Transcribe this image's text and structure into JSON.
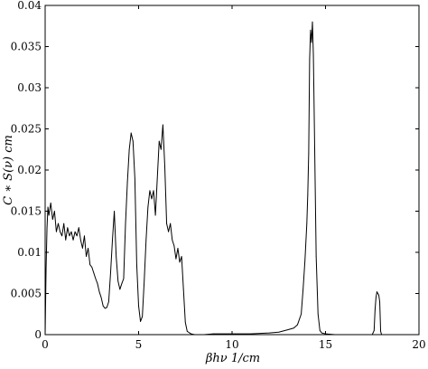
{
  "chart_data": {
    "type": "line",
    "title": "",
    "xlabel": "βhν 1/cm",
    "ylabel": "C ∗ S(ν) cm",
    "xlim": [
      0,
      20
    ],
    "ylim": [
      0,
      0.04
    ],
    "x_ticks": [
      0,
      5,
      10,
      15,
      20
    ],
    "x_tick_labels": [
      "0",
      "5",
      "10",
      "15",
      "20"
    ],
    "y_ticks": [
      0,
      0.005,
      0.01,
      0.015,
      0.02,
      0.025,
      0.03,
      0.035,
      0.04
    ],
    "y_tick_labels": [
      "0",
      "0.005",
      "0.01",
      "0.015",
      "0.02",
      "0.025",
      "0.03",
      "0.035",
      "0.04"
    ],
    "grid": false,
    "legend": "none",
    "line_color": "#000000",
    "series": [
      {
        "x": [
          0.0,
          0.05,
          0.1,
          0.15,
          0.2,
          0.3,
          0.4,
          0.5,
          0.6,
          0.7,
          0.8,
          0.9,
          1.0,
          1.1,
          1.2,
          1.3,
          1.4,
          1.5,
          1.6,
          1.7,
          1.8,
          1.9,
          2.0,
          2.1,
          2.2,
          2.3,
          2.4,
          2.5,
          2.6,
          2.7,
          2.8,
          2.9,
          3.0,
          3.1,
          3.2,
          3.3,
          3.4,
          3.5,
          3.6,
          3.7,
          3.8,
          3.9,
          4.0,
          4.1,
          4.2,
          4.3,
          4.4,
          4.5,
          4.6,
          4.7,
          4.8,
          4.9,
          5.0,
          5.1,
          5.2,
          5.3,
          5.4,
          5.5,
          5.6,
          5.7,
          5.8,
          5.9,
          6.0,
          6.1,
          6.2,
          6.3,
          6.4,
          6.5,
          6.6,
          6.7,
          6.8,
          6.9,
          7.0,
          7.1,
          7.2,
          7.3,
          7.4,
          7.5,
          7.6,
          7.8,
          8.0,
          8.5,
          9.0,
          10.0,
          11.0,
          12.0,
          12.5,
          13.0,
          13.3,
          13.5,
          13.7,
          13.8,
          13.9,
          14.0,
          14.05,
          14.1,
          14.15,
          14.2,
          14.25,
          14.3,
          14.35,
          14.4,
          14.5,
          14.6,
          14.7,
          14.8,
          15.0,
          15.5,
          16.0,
          16.5,
          17.0,
          17.5,
          17.6,
          17.65,
          17.7,
          17.75,
          17.8,
          17.85,
          17.9,
          17.95,
          18.0,
          18.5,
          19.0,
          20.0
        ],
        "y": [
          0.0,
          0.008,
          0.013,
          0.0155,
          0.0145,
          0.016,
          0.014,
          0.015,
          0.0125,
          0.0135,
          0.0125,
          0.012,
          0.0135,
          0.0115,
          0.013,
          0.012,
          0.0125,
          0.0115,
          0.0125,
          0.012,
          0.013,
          0.0115,
          0.0105,
          0.012,
          0.0095,
          0.0105,
          0.0085,
          0.0082,
          0.0075,
          0.0068,
          0.0062,
          0.0052,
          0.0045,
          0.0035,
          0.0032,
          0.0033,
          0.004,
          0.0075,
          0.0115,
          0.015,
          0.0095,
          0.0065,
          0.0055,
          0.0062,
          0.0068,
          0.0135,
          0.0185,
          0.0225,
          0.0245,
          0.0235,
          0.019,
          0.0085,
          0.0035,
          0.0016,
          0.0022,
          0.0065,
          0.0115,
          0.0155,
          0.0175,
          0.0165,
          0.0175,
          0.0145,
          0.019,
          0.0235,
          0.0225,
          0.0255,
          0.0205,
          0.0135,
          0.0125,
          0.0135,
          0.0115,
          0.0108,
          0.0092,
          0.0105,
          0.0088,
          0.0095,
          0.0055,
          0.0015,
          0.0004,
          0.0001,
          0.0,
          0.0,
          0.0001,
          0.0001,
          0.0001,
          0.0002,
          0.0003,
          0.0006,
          0.0008,
          0.0012,
          0.0025,
          0.0055,
          0.009,
          0.0135,
          0.017,
          0.022,
          0.0335,
          0.037,
          0.0355,
          0.038,
          0.034,
          0.026,
          0.0095,
          0.0025,
          0.0005,
          0.0002,
          0.0001,
          0.0,
          0.0,
          0.0,
          0.0,
          0.0,
          0.0005,
          0.003,
          0.0045,
          0.0052,
          0.005,
          0.0048,
          0.004,
          0.0004,
          0.0,
          0.0,
          0.0,
          0.0
        ]
      }
    ]
  }
}
